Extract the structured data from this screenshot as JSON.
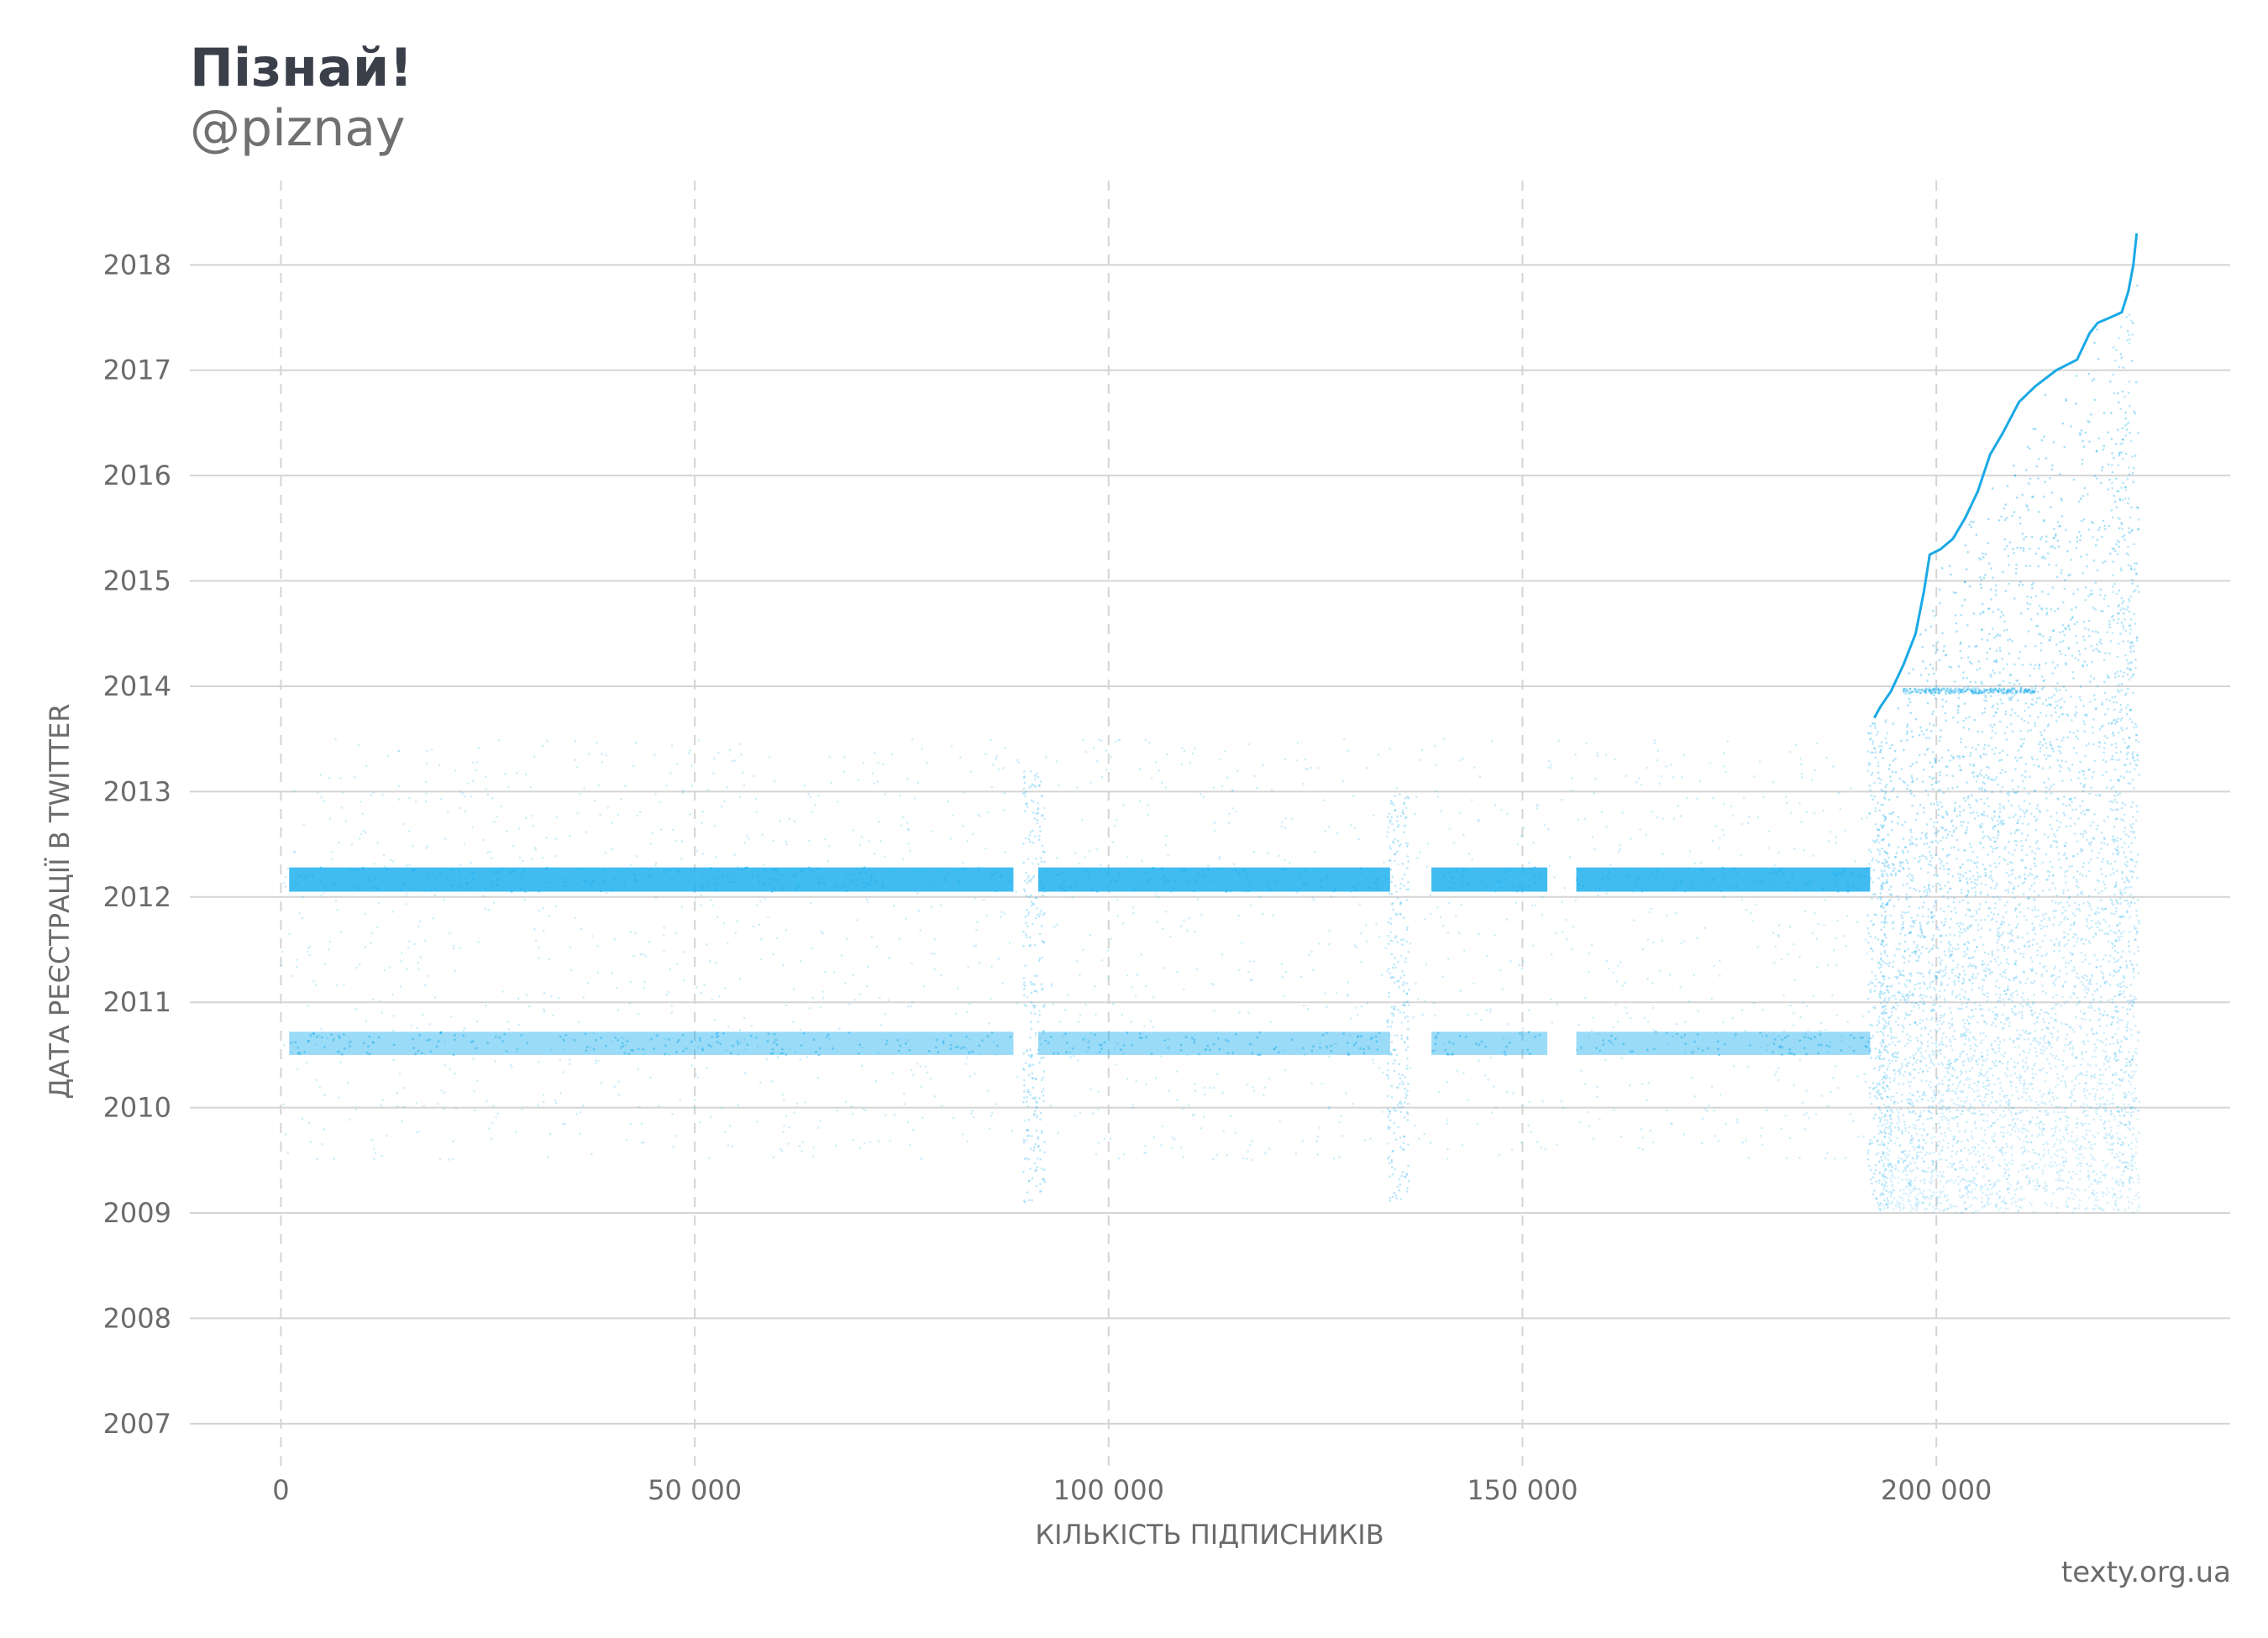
{
  "header": {
    "title": "Пізнай!",
    "subtitle": "@piznay"
  },
  "footer": {
    "credit": "texty.org.ua"
  },
  "colors": {
    "points": "#1fb0ee",
    "line": "#1aa9e6",
    "grid": "#d4d4d4",
    "text": "#6b6b6b",
    "title": "#3a3f4a"
  },
  "chart_data": {
    "type": "scatter",
    "xlabel": "КІЛЬКІСТЬ ПІДПИСНИКІВ",
    "ylabel": "ДАТА РЕЄСТРАЦІЇ В TWITTER",
    "xlim": [
      -11000,
      235500
    ],
    "ylim": [
      2006.6,
      2018.8
    ],
    "x_ticks": [
      0,
      50000,
      100000,
      150000,
      200000
    ],
    "x_tick_labels": [
      "0",
      "50 000",
      "100 000",
      "150 000",
      "200 000"
    ],
    "y_ticks": [
      2007,
      2008,
      2009,
      2010,
      2011,
      2012,
      2013,
      2014,
      2015,
      2016,
      2017,
      2018
    ],
    "y_tick_labels": [
      "2007",
      "2008",
      "2009",
      "2010",
      "2011",
      "2012",
      "2013",
      "2014",
      "2015",
      "2016",
      "2017",
      "2018"
    ],
    "grid": {
      "x": "dashed",
      "y": "solid"
    },
    "dense_bands": [
      {
        "y_range": [
          2012.05,
          2012.28
        ],
        "x_segments": [
          [
            1000,
            88500
          ],
          [
            91500,
            134000
          ],
          [
            139000,
            153000
          ],
          [
            156500,
            192000
          ]
        ]
      },
      {
        "y_range": [
          2010.5,
          2010.72
        ],
        "x_segments": [
          [
            1000,
            88500
          ],
          [
            91500,
            134000
          ],
          [
            139000,
            153000
          ],
          [
            156500,
            192000
          ]
        ]
      }
    ],
    "vertical_clusters": [
      {
        "x": 91000,
        "y_range": [
          2009.1,
          2013.2
        ]
      },
      {
        "x": 135000,
        "y_range": [
          2009.1,
          2013.0
        ]
      },
      {
        "x": 193000,
        "y_range": [
          2009.0,
          2013.7
        ]
      },
      {
        "x": 222500,
        "y_range": [
          2009.2,
          2017.6
        ]
      }
    ],
    "sparse_region": {
      "x_range": [
        0,
        192000
      ],
      "y_range": [
        2009.5,
        2013.5
      ]
    },
    "growth_region": {
      "x_range": [
        193000,
        224500
      ],
      "y_min": 2009.0
    },
    "new_follower_curve": {
      "x": [
        192500,
        193200,
        194500,
        196000,
        197500,
        198500,
        199200,
        200500,
        202000,
        203500,
        205000,
        206500,
        208000,
        210000,
        212000,
        214500,
        217000,
        218500,
        219500,
        221000,
        222400,
        223200,
        223800,
        224200
      ],
      "y": [
        2013.7,
        2013.8,
        2013.95,
        2014.2,
        2014.5,
        2014.9,
        2015.25,
        2015.3,
        2015.4,
        2015.6,
        2015.85,
        2016.2,
        2016.4,
        2016.7,
        2016.85,
        2017.0,
        2017.1,
        2017.35,
        2017.45,
        2017.5,
        2017.55,
        2017.75,
        2018.0,
        2018.3
      ]
    }
  }
}
